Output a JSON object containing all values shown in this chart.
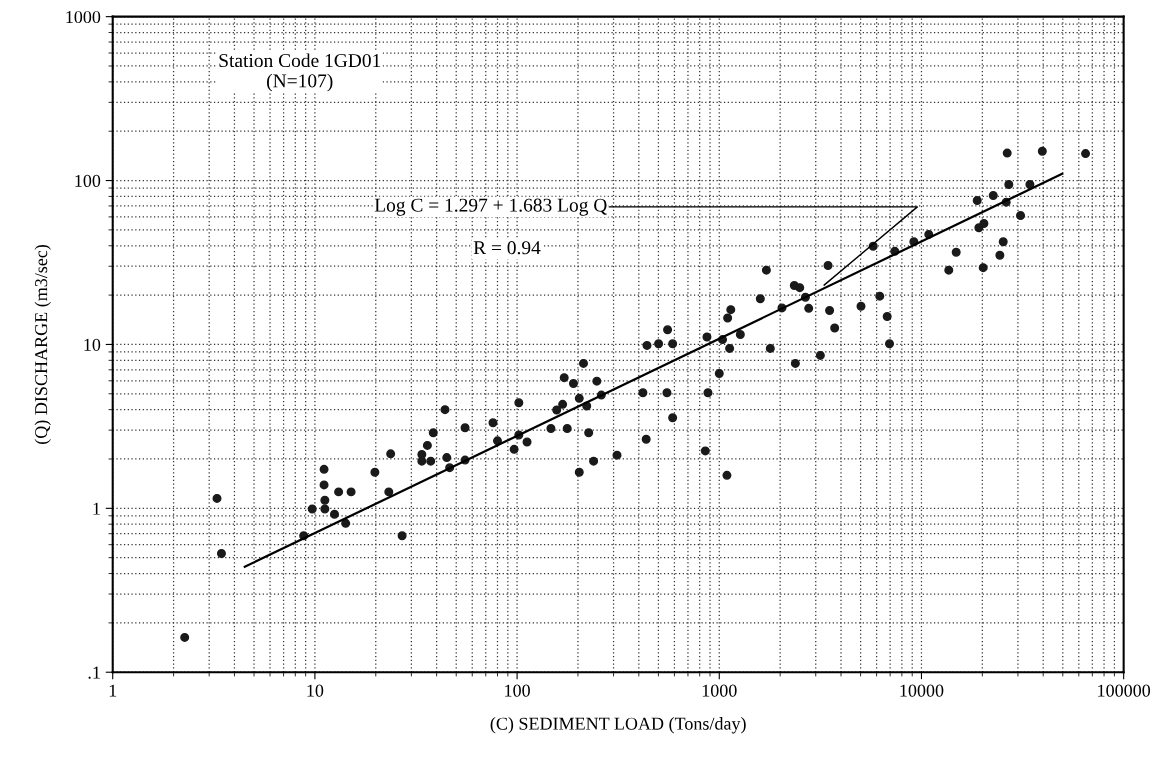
{
  "chart_data": {
    "type": "scatter",
    "xlabel": "(C) SEDIMENT LOAD (Tons/day)",
    "ylabel": "(Q) DISCHARGE (m3/sec)",
    "log": "xy",
    "xlim": [
      1,
      100000
    ],
    "ylim": [
      0.1,
      1000
    ],
    "xticks": [
      1,
      10,
      100,
      1000,
      10000,
      100000
    ],
    "yticks": [
      {
        "value": 0.1,
        "label": ".1"
      },
      1,
      10,
      100,
      1000
    ],
    "grid": true,
    "annotations": [
      "Station Code 1GD01\n(N=107)",
      {
        "text": "Log C = 1.297 + 1.683 Log Q",
        "x": 3300,
        "y": 23
      },
      "R = 0.94"
    ],
    "series": [
      {
        "marker": "circle",
        "color": "#1a1a1a",
        "x": [
          2.27,
          3.28,
          3.45,
          8.8,
          9.7,
          11.1,
          11.1,
          11.2,
          11.2,
          12.5,
          13.1,
          15.1,
          14.2,
          19.8,
          23.7,
          23.2,
          27.0,
          33.8,
          33.8,
          36.0,
          37.4,
          38.5,
          44.0,
          44.9,
          46.4,
          55.3,
          55.3,
          76,
          80,
          102,
          102,
          96.7,
          112,
          147,
          157,
          168,
          171,
          190,
          177,
          213,
          203,
          221,
          226,
          203,
          239,
          248,
          261,
          312,
          419,
          435,
          439,
          501,
          555,
          588,
          551,
          588,
          853,
          869,
          879,
          1038,
          1000,
          1091,
          1125,
          1100,
          1140,
          1271,
          1596,
          1710,
          1788,
          2042,
          2379,
          2350,
          2500,
          2667,
          2769,
          3162,
          3451,
          3512,
          3722,
          5023,
          5768,
          6220,
          6768,
          6950,
          7380,
          9170,
          10870,
          13650,
          14850,
          18870,
          19230,
          20360,
          20200,
          22650,
          25370,
          24420,
          26250,
          26550,
          27040,
          30900,
          34380,
          39600,
          64800
        ],
        "values": [
          0.163,
          1.15,
          0.53,
          0.68,
          0.99,
          1.73,
          1.39,
          1.12,
          0.99,
          0.92,
          1.26,
          1.26,
          0.81,
          1.66,
          2.15,
          1.26,
          0.68,
          2.13,
          1.94,
          2.42,
          1.94,
          2.89,
          4.0,
          2.04,
          1.77,
          3.1,
          1.97,
          3.33,
          2.58,
          4.41,
          2.8,
          2.29,
          2.54,
          3.07,
          3.98,
          4.31,
          6.27,
          5.78,
          3.07,
          7.66,
          4.69,
          4.21,
          2.89,
          1.66,
          1.94,
          5.97,
          4.91,
          2.11,
          5.07,
          2.64,
          9.86,
          10.1,
          12.3,
          10.1,
          5.07,
          3.57,
          2.24,
          11.1,
          5.07,
          10.7,
          6.65,
          1.59,
          9.46,
          14.5,
          16.3,
          11.5,
          19.0,
          28.4,
          9.46,
          16.7,
          7.66,
          22.9,
          22.2,
          19.4,
          16.6,
          8.57,
          30.3,
          16.1,
          12.6,
          17.1,
          39.7,
          19.7,
          14.8,
          10.1,
          37.0,
          42.3,
          46.9,
          28.4,
          36.5,
          75.5,
          51.5,
          54.7,
          29.4,
          81,
          42.3,
          35,
          73.8,
          147,
          94.6,
          61.2,
          94.6,
          151,
          146
        ]
      },
      {
        "type": "line",
        "marker": "none",
        "color": "#000000",
        "x": [
          4.5,
          49700
        ],
        "values": [
          0.44,
          110
        ]
      }
    ]
  }
}
